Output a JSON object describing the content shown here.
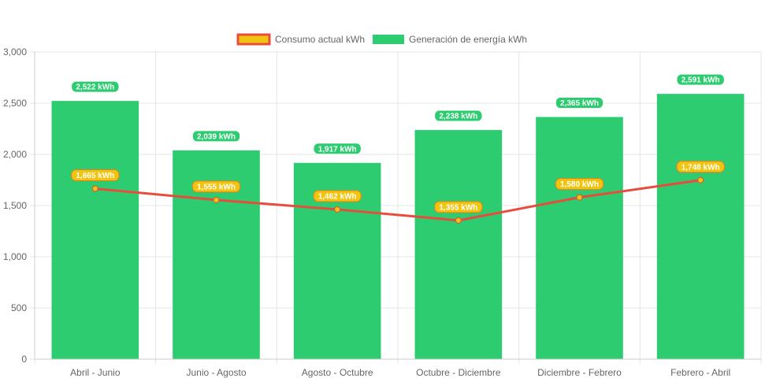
{
  "chart_data": {
    "type": "bar",
    "categories": [
      "Abril - Junio",
      "Junio - Agosto",
      "Agosto - Octubre",
      "Octubre - Diciembre",
      "Diciembre - Febrero",
      "Febrero - Abril"
    ],
    "series": [
      {
        "name": "Generación de energía kWh",
        "type": "bar",
        "values": [
          2522,
          2039,
          1917,
          2238,
          2365,
          2591
        ],
        "labels": [
          "2,522 kWh",
          "2,039 kWh",
          "1,917 kWh",
          "2,238 kWh",
          "2,365 kWh",
          "2,591 kWh"
        ],
        "color": "#2ecc71"
      },
      {
        "name": "Consumo actual kWh",
        "type": "line",
        "values": [
          1665,
          1555,
          1462,
          1355,
          1580,
          1748
        ],
        "labels": [
          "1,665 kWh",
          "1,555 kWh",
          "1,462 kWh",
          "1,355 kWh",
          "1,580 kWh",
          "1,748 kWh"
        ],
        "color": "#e74c3c",
        "fill_color": "#f1c40f"
      }
    ],
    "legend": {
      "position": "top",
      "items": [
        "Consumo actual kWh",
        "Generación de energía kWh"
      ]
    },
    "yticks": [
      "0",
      "500",
      "1,000",
      "1,500",
      "2,000",
      "2,500",
      "3,000"
    ],
    "ytick_values": [
      0,
      500,
      1000,
      1500,
      2000,
      2500,
      3000
    ],
    "ylim": [
      0,
      3000
    ],
    "grid": true,
    "title": "",
    "xlabel": "",
    "ylabel": ""
  }
}
